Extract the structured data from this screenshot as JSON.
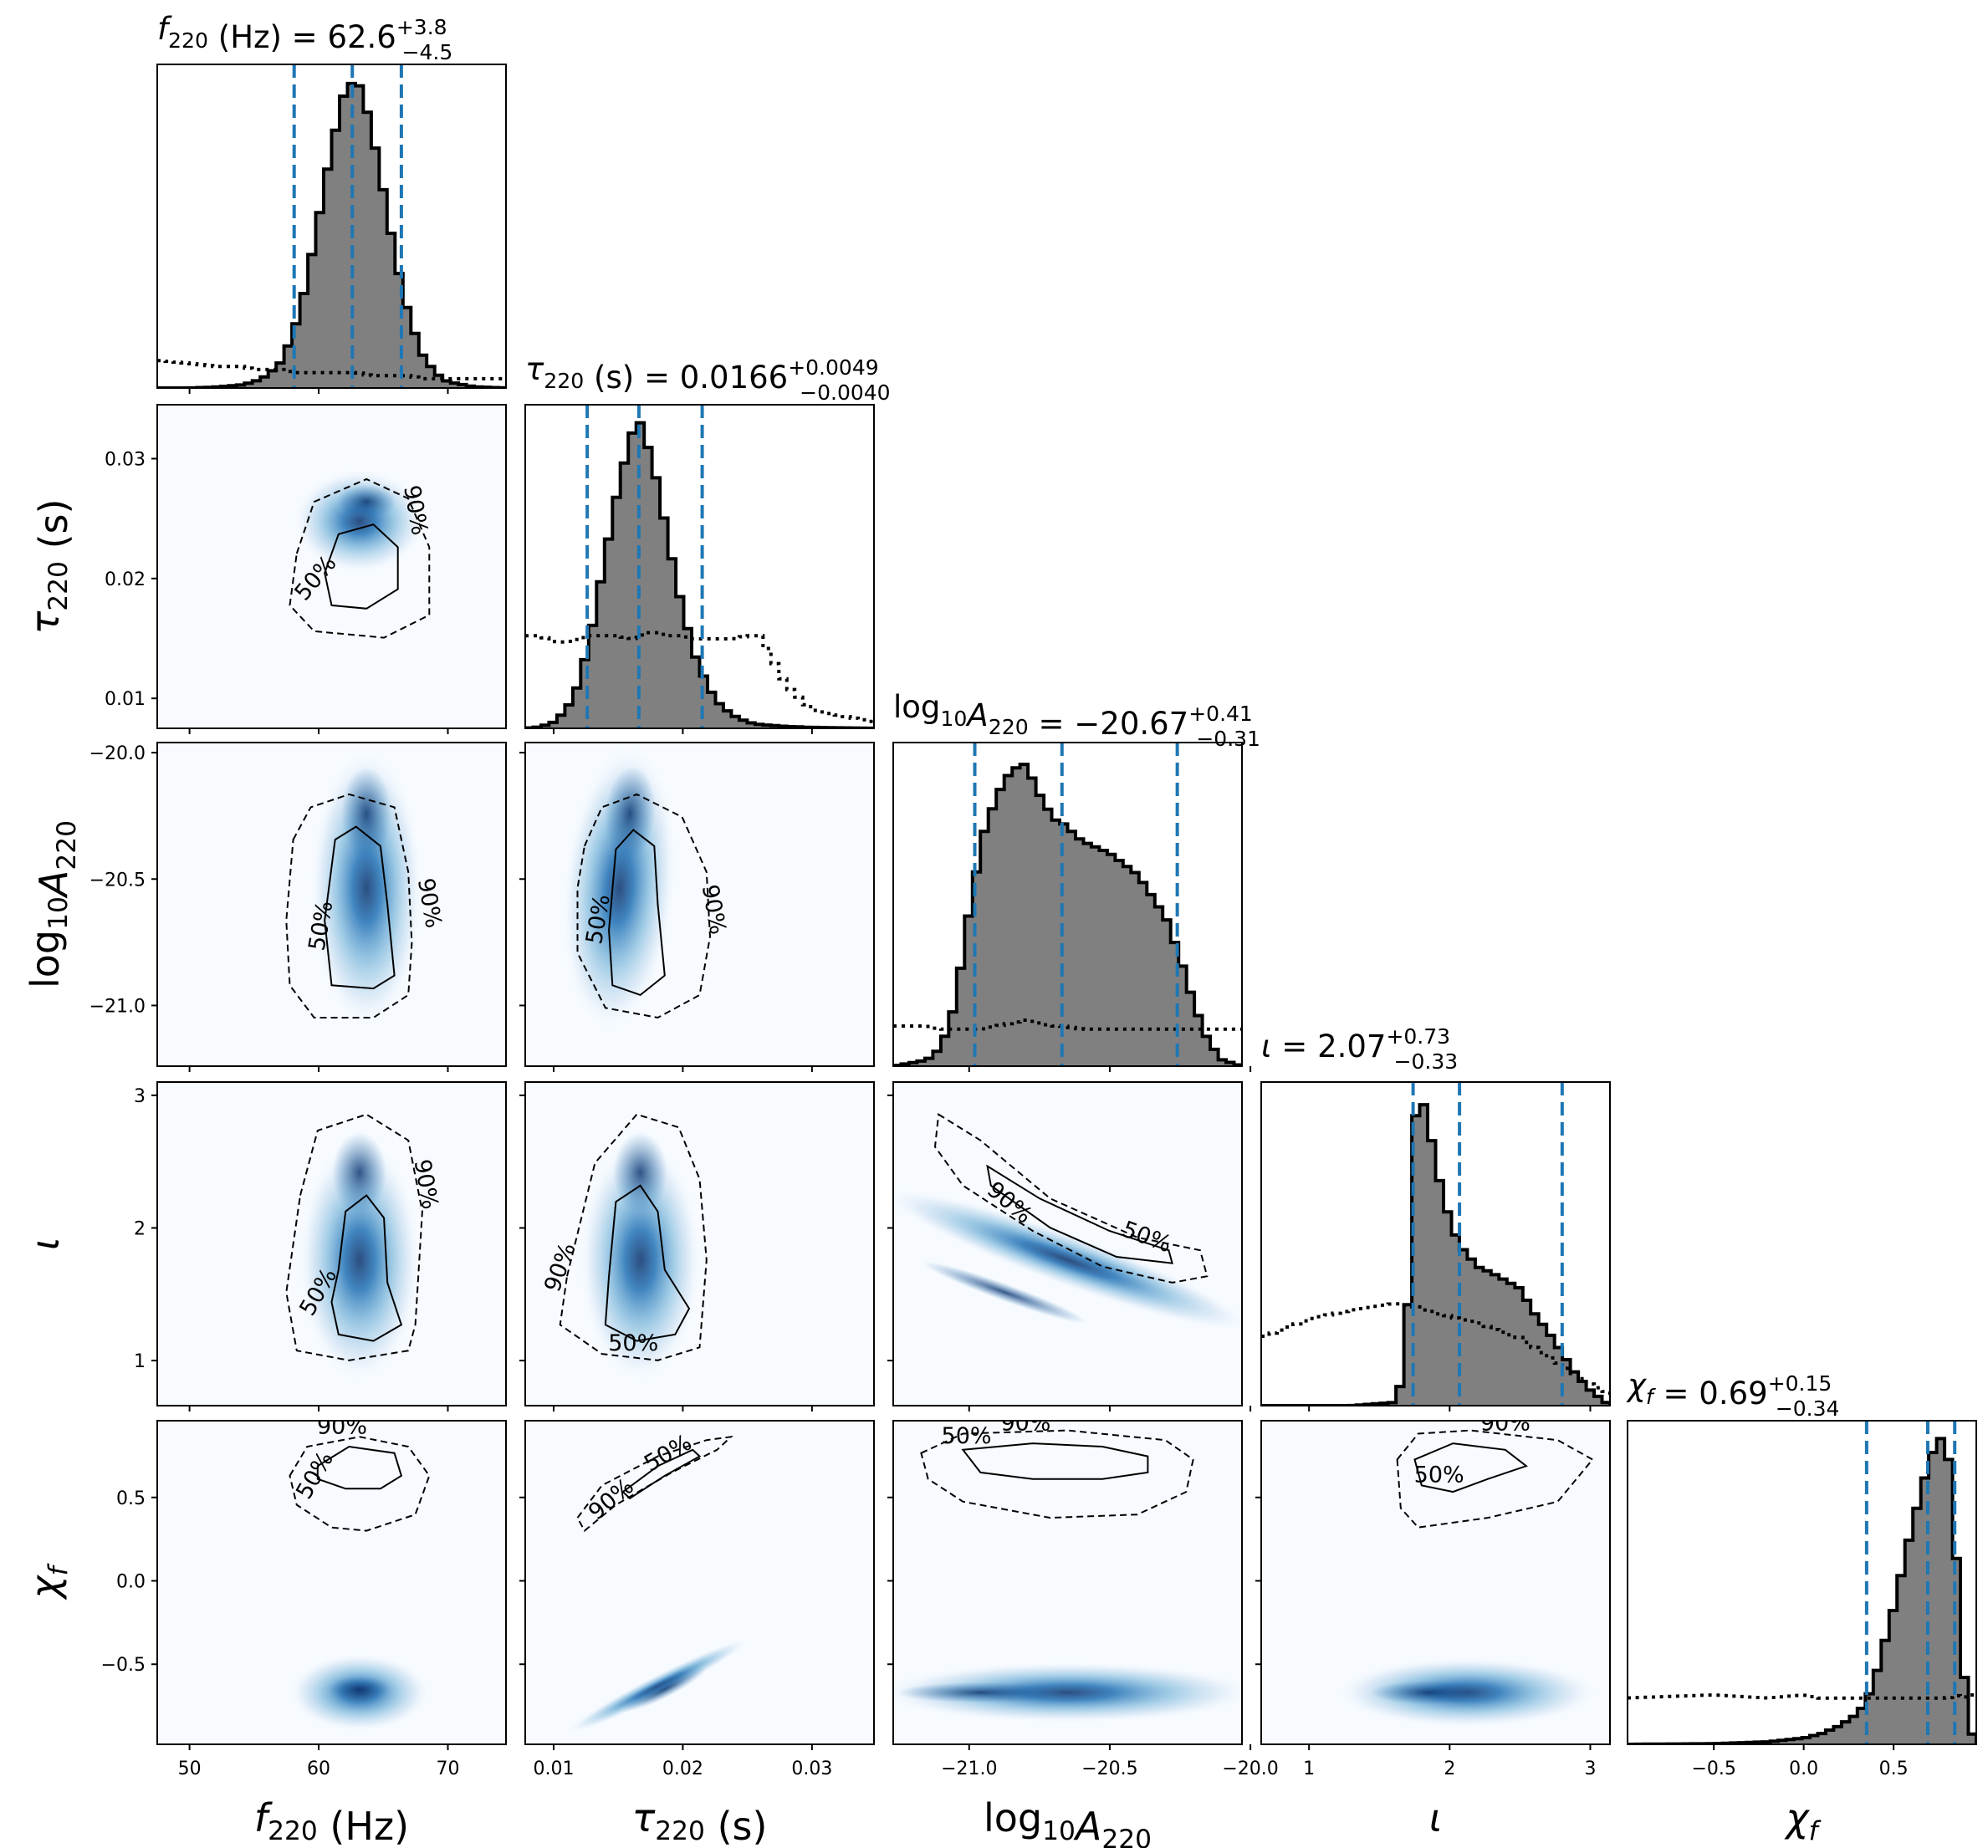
{
  "chart_data": {
    "type": "corner",
    "parameters": [
      {
        "key": "f220",
        "title": "f220 (Hz) = 62.6 +3.8 −4.5",
        "title_main": "62.6",
        "title_plus": "+3.8",
        "title_minus": "−4.5",
        "axis_label": "f220 (Hz)",
        "range": [
          47.5,
          74.5
        ],
        "ticks": [
          50,
          60,
          70
        ],
        "tick_labels": [
          "50",
          "60",
          "70"
        ],
        "median": 62.6,
        "lower": 58.1,
        "upper": 66.4
      },
      {
        "key": "tau220",
        "title": "τ220 (s) = 0.0166 +0.0049 −0.0040",
        "title_main": "0.0166",
        "title_plus": "+0.0049",
        "title_minus": "−0.0040",
        "axis_label": "τ220 (s)",
        "range": [
          0.0078,
          0.0348
        ],
        "ticks": [
          0.01,
          0.02,
          0.03
        ],
        "tick_labels": [
          "0.01",
          "0.02",
          "0.03"
        ],
        "median": 0.0166,
        "lower": 0.0126,
        "upper": 0.0215
      },
      {
        "key": "logA220",
        "title": "log10A220 = −20.67 +0.41 −0.31",
        "title_main": "−20.67",
        "title_plus": "+0.41",
        "title_minus": "−0.31",
        "axis_label": "log10A220",
        "range": [
          -21.27,
          -20.03
        ],
        "ticks": [
          -21.0,
          -20.5,
          -20.0
        ],
        "tick_labels": [
          "−21.0",
          "−20.5",
          "−20.0"
        ],
        "median": -20.67,
        "lower": -20.98,
        "upper": -20.26
      },
      {
        "key": "iota",
        "title": "ι = 2.07 +0.73 −0.33",
        "title_main": "2.07",
        "title_plus": "+0.73",
        "title_minus": "−0.33",
        "axis_label": "ι",
        "range": [
          0.66,
          3.14
        ],
        "ticks": [
          1,
          2,
          3
        ],
        "tick_labels": [
          "1",
          "2",
          "3"
        ],
        "median": 2.07,
        "lower": 1.74,
        "upper": 2.8
      },
      {
        "key": "chi_f",
        "title": "χf = 0.69 +0.15 −0.34",
        "title_main": "0.69",
        "title_plus": "+0.15",
        "title_minus": "−0.34",
        "axis_label": "χf",
        "range": [
          -0.98,
          0.96
        ],
        "ticks": [
          -0.5,
          0.0,
          0.5
        ],
        "tick_labels": [
          "−0.5",
          "0.0",
          "0.5"
        ],
        "median": 0.69,
        "lower": 0.35,
        "upper": 0.84
      }
    ],
    "y_ticks": {
      "tau220": {
        "range": [
          0.0075,
          0.0345
        ],
        "ticks": [
          0.01,
          0.02,
          0.03
        ],
        "tick_labels": [
          "0.01",
          "0.02",
          "0.03"
        ]
      },
      "logA220": {
        "range": [
          -21.24,
          -19.96
        ],
        "ticks": [
          -21.0,
          -20.5,
          -20.0
        ],
        "tick_labels": [
          "−21.0",
          "−20.5",
          "−20.0"
        ]
      },
      "iota": {
        "range": [
          0.66,
          3.1
        ],
        "ticks": [
          1,
          2,
          3
        ],
        "tick_labels": [
          "1",
          "2",
          "3"
        ]
      },
      "chi_f": {
        "range": [
          -0.98,
          0.96
        ],
        "ticks": [
          -0.5,
          0.0,
          0.5
        ],
        "tick_labels": [
          "−0.5",
          "0.0",
          "0.5"
        ]
      }
    },
    "histograms": {
      "f220": {
        "x": [
          47.5,
          50,
          52,
          54,
          55,
          56,
          57,
          58,
          59,
          60,
          61,
          62,
          62.6,
          63,
          64,
          65,
          66,
          67,
          68,
          69,
          70,
          72,
          74.5
        ],
        "density": [
          0,
          0,
          0.003,
          0.01,
          0.02,
          0.04,
          0.08,
          0.17,
          0.33,
          0.55,
          0.78,
          0.96,
          0.99,
          1.0,
          0.86,
          0.64,
          0.41,
          0.23,
          0.11,
          0.05,
          0.02,
          0.004,
          0
        ],
        "prior": [
          0.09,
          0.08,
          0.07,
          0.07,
          0.06,
          0.06,
          0.06,
          0.05,
          0.05,
          0.05,
          0.05,
          0.05,
          0.05,
          0.05,
          0.04,
          0.04,
          0.04,
          0.04,
          0.03,
          0.03,
          0.03,
          0.03,
          0.03
        ]
      },
      "tau220": {
        "x": [
          0.0078,
          0.009,
          0.01,
          0.011,
          0.012,
          0.013,
          0.014,
          0.015,
          0.016,
          0.0166,
          0.017,
          0.018,
          0.019,
          0.02,
          0.021,
          0.022,
          0.023,
          0.024,
          0.025,
          0.026,
          0.028,
          0.03,
          0.0348
        ],
        "density": [
          0,
          0.005,
          0.02,
          0.06,
          0.15,
          0.33,
          0.56,
          0.78,
          0.95,
          1.0,
          0.96,
          0.8,
          0.58,
          0.38,
          0.23,
          0.13,
          0.07,
          0.04,
          0.02,
          0.012,
          0.006,
          0.003,
          0
        ],
        "prior": [
          0.3,
          0.3,
          0.28,
          0.28,
          0.29,
          0.3,
          0.3,
          0.3,
          0.29,
          0.3,
          0.31,
          0.31,
          0.3,
          0.3,
          0.29,
          0.29,
          0.29,
          0.29,
          0.3,
          0.3,
          0.14,
          0.06,
          0.02
        ]
      },
      "logA220": {
        "x": [
          -21.27,
          -21.15,
          -21.1,
          -21.05,
          -21.0,
          -20.95,
          -20.9,
          -20.85,
          -20.8,
          -20.75,
          -20.7,
          -20.67,
          -20.6,
          -20.5,
          -20.4,
          -20.35,
          -20.3,
          -20.25,
          -20.2,
          -20.15,
          -20.1,
          -20.03
        ],
        "density": [
          0,
          0.02,
          0.06,
          0.2,
          0.5,
          0.75,
          0.88,
          0.96,
          0.98,
          0.88,
          0.8,
          0.79,
          0.73,
          0.69,
          0.62,
          0.55,
          0.48,
          0.35,
          0.2,
          0.08,
          0.02,
          0
        ],
        "prior": [
          0.13,
          0.13,
          0.12,
          0.12,
          0.12,
          0.12,
          0.13,
          0.14,
          0.15,
          0.14,
          0.13,
          0.13,
          0.12,
          0.12,
          0.12,
          0.12,
          0.12,
          0.12,
          0.12,
          0.12,
          0.12,
          0.12
        ]
      },
      "iota": {
        "x": [
          0.66,
          1.0,
          1.3,
          1.6,
          1.68,
          1.72,
          1.76,
          1.8,
          1.85,
          1.9,
          2.0,
          2.07,
          2.2,
          2.3,
          2.5,
          2.6,
          2.7,
          2.8,
          2.9,
          3.0,
          3.14
        ],
        "density": [
          0,
          0,
          0,
          0.01,
          0.1,
          0.5,
          0.95,
          1.0,
          0.92,
          0.78,
          0.6,
          0.52,
          0.45,
          0.43,
          0.38,
          0.3,
          0.24,
          0.17,
          0.1,
          0.05,
          0
        ],
        "prior": [
          0.22,
          0.28,
          0.31,
          0.33,
          0.33,
          0.32,
          0.32,
          0.31,
          0.31,
          0.3,
          0.29,
          0.28,
          0.27,
          0.25,
          0.22,
          0.19,
          0.16,
          0.13,
          0.1,
          0.07,
          0.04
        ]
      },
      "chi_f": {
        "x": [
          -0.98,
          -0.5,
          -0.2,
          0.0,
          0.1,
          0.2,
          0.3,
          0.35,
          0.4,
          0.5,
          0.6,
          0.69,
          0.75,
          0.8,
          0.84,
          0.88,
          0.92,
          0.96
        ],
        "density": [
          0,
          0.002,
          0.008,
          0.02,
          0.035,
          0.06,
          0.1,
          0.14,
          0.22,
          0.44,
          0.7,
          0.9,
          1.0,
          0.96,
          0.7,
          0.3,
          0.06,
          0
        ],
        "prior": [
          0.15,
          0.16,
          0.15,
          0.16,
          0.15,
          0.15,
          0.15,
          0.15,
          0.15,
          0.15,
          0.15,
          0.15,
          0.15,
          0.15,
          0.16,
          0.15,
          0.16,
          0.16
        ]
      }
    },
    "contour_labels": [
      "50%",
      "90%"
    ],
    "quantile_line_color": "#1f77b4",
    "histogram_fill": "#808080",
    "density_colormap": "Blues",
    "grid": false,
    "legend": "none"
  }
}
